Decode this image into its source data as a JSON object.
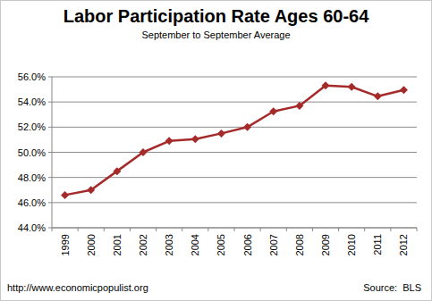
{
  "chart_data": {
    "type": "line",
    "title": "Labor Participation Rate Ages 60-64",
    "subtitle": "September to September Average",
    "categories": [
      "1999",
      "2000",
      "2001",
      "2002",
      "2003",
      "2004",
      "2005",
      "2006",
      "2007",
      "2008",
      "2009",
      "2010",
      "2011",
      "2012"
    ],
    "values": [
      46.6,
      47.0,
      48.5,
      50.0,
      50.9,
      51.05,
      51.5,
      52.0,
      53.25,
      53.7,
      55.3,
      55.2,
      54.45,
      54.95
    ],
    "color": "#a52a2a",
    "marker": "diamond",
    "grid": true,
    "ylim": [
      44,
      56
    ],
    "yticks": [
      {
        "value": 44,
        "label": "44.0%"
      },
      {
        "value": 46,
        "label": "46.0%"
      },
      {
        "value": 48,
        "label": "48.0%"
      },
      {
        "value": 50,
        "label": "50.0%"
      },
      {
        "value": 52,
        "label": "52.0%"
      },
      {
        "value": 54,
        "label": "54.0%"
      },
      {
        "value": 56,
        "label": "56.0%"
      }
    ],
    "annotations": [
      "http://www.economicpopulist.org",
      "Source:  BLS"
    ]
  }
}
